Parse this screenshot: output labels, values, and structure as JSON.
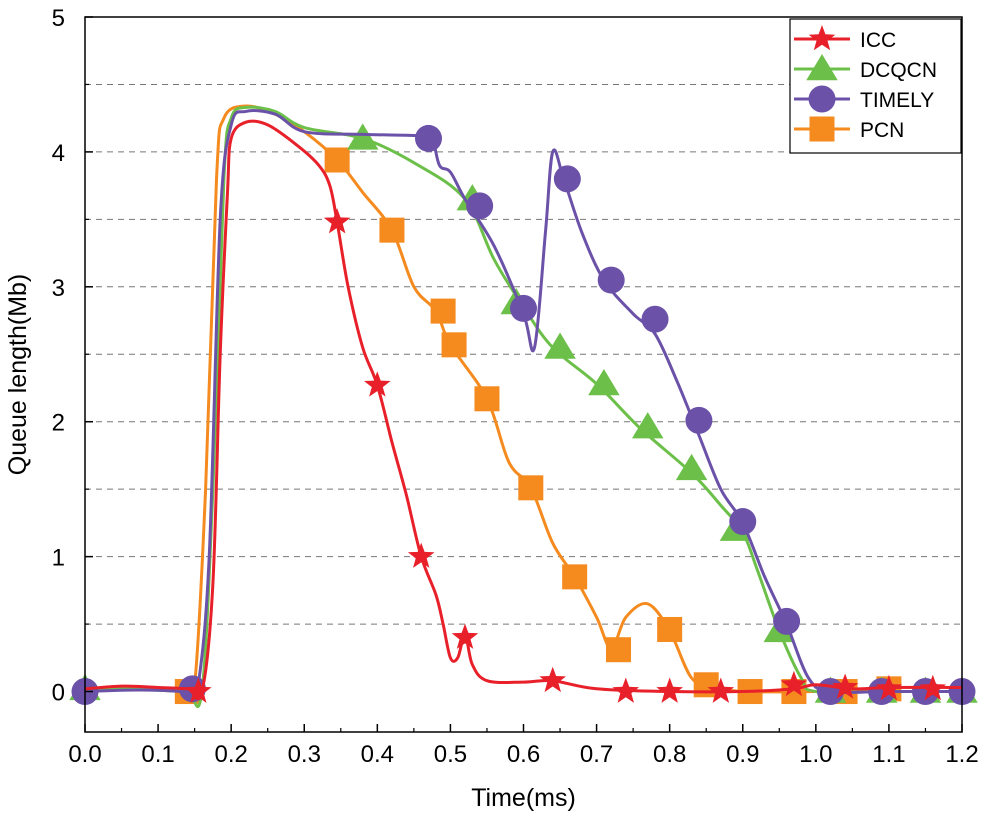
{
  "chart_data": {
    "type": "line",
    "title": "",
    "xlabel": "Time(ms)",
    "ylabel": "Queue length(Mb)",
    "xlim": [
      0.0,
      1.2
    ],
    "ylim": [
      -0.3,
      5.0
    ],
    "x_ticks": [
      "0.0",
      "0.1",
      "0.2",
      "0.3",
      "0.4",
      "0.5",
      "0.6",
      "0.7",
      "0.8",
      "0.9",
      "1.0",
      "1.1",
      "1.2"
    ],
    "y_ticks": [
      "0",
      "1",
      "2",
      "3",
      "4",
      "5"
    ],
    "grid": "horizontal-dashed",
    "legend_position": "top-right",
    "series": [
      {
        "name": "ICC",
        "color": "#e8202a",
        "marker": "star",
        "points": [
          [
            0,
            0.02
          ],
          [
            0.05,
            0.04
          ],
          [
            0.1,
            0.03
          ],
          [
            0.14,
            0.02
          ],
          [
            0.16,
            0
          ],
          [
            0.175,
            0.8
          ],
          [
            0.185,
            2.5
          ],
          [
            0.195,
            3.7
          ],
          [
            0.2,
            4.1
          ],
          [
            0.22,
            4.22
          ],
          [
            0.25,
            4.2
          ],
          [
            0.29,
            4.05
          ],
          [
            0.32,
            3.9
          ],
          [
            0.335,
            3.75
          ],
          [
            0.345,
            3.48
          ],
          [
            0.36,
            3.0
          ],
          [
            0.38,
            2.55
          ],
          [
            0.4,
            2.27
          ],
          [
            0.42,
            1.85
          ],
          [
            0.44,
            1.45
          ],
          [
            0.46,
            1.0
          ],
          [
            0.48,
            0.72
          ],
          [
            0.49,
            0.5
          ],
          [
            0.5,
            0.25
          ],
          [
            0.51,
            0.25
          ],
          [
            0.52,
            0.42
          ],
          [
            0.53,
            0.2
          ],
          [
            0.55,
            0.08
          ],
          [
            0.6,
            0.07
          ],
          [
            0.64,
            0.08
          ],
          [
            0.7,
            0.02
          ],
          [
            0.8,
            0.0
          ],
          [
            0.9,
            0.0
          ],
          [
            0.97,
            0.02
          ],
          [
            1.0,
            0.05
          ],
          [
            1.05,
            0.02
          ],
          [
            1.1,
            0.03
          ],
          [
            1.2,
            0.03
          ]
        ],
        "markers": [
          [
            0.155,
            0.0
          ],
          [
            0.345,
            3.48
          ],
          [
            0.4,
            2.27
          ],
          [
            0.46,
            1.0
          ],
          [
            0.52,
            0.4
          ],
          [
            0.64,
            0.08
          ],
          [
            0.74,
            0.0
          ],
          [
            0.8,
            0.0
          ],
          [
            0.87,
            0.0
          ],
          [
            0.97,
            0.05
          ],
          [
            1.04,
            0.03
          ],
          [
            1.1,
            0.02
          ],
          [
            1.16,
            0.02
          ]
        ]
      },
      {
        "name": "DCQCN",
        "color": "#6cc04a",
        "marker": "triangle",
        "points": [
          [
            0,
            0.02
          ],
          [
            0.05,
            0.02
          ],
          [
            0.1,
            0.01
          ],
          [
            0.14,
            0.0
          ],
          [
            0.16,
            0
          ],
          [
            0.175,
            1.5
          ],
          [
            0.19,
            3.8
          ],
          [
            0.2,
            4.25
          ],
          [
            0.22,
            4.33
          ],
          [
            0.26,
            4.3
          ],
          [
            0.3,
            4.18
          ],
          [
            0.38,
            4.1
          ],
          [
            0.45,
            3.92
          ],
          [
            0.52,
            3.65
          ],
          [
            0.56,
            3.2
          ],
          [
            0.6,
            2.85
          ],
          [
            0.64,
            2.55
          ],
          [
            0.7,
            2.28
          ],
          [
            0.76,
            1.95
          ],
          [
            0.83,
            1.62
          ],
          [
            0.87,
            1.38
          ],
          [
            0.9,
            1.18
          ],
          [
            0.92,
            0.9
          ],
          [
            0.95,
            0.45
          ],
          [
            0.98,
            0.1
          ],
          [
            1.0,
            0.0
          ],
          [
            1.1,
            0.0
          ],
          [
            1.2,
            0.0
          ]
        ],
        "markers": [
          [
            0.0,
            0.02
          ],
          [
            0.38,
            4.1
          ],
          [
            0.53,
            3.65
          ],
          [
            0.59,
            2.88
          ],
          [
            0.65,
            2.55
          ],
          [
            0.71,
            2.28
          ],
          [
            0.77,
            1.96
          ],
          [
            0.83,
            1.65
          ],
          [
            0.89,
            1.2
          ],
          [
            0.95,
            0.45
          ],
          [
            1.02,
            0.0
          ],
          [
            1.09,
            0.0
          ],
          [
            1.15,
            0.0
          ],
          [
            1.2,
            0.0
          ]
        ]
      },
      {
        "name": "TIMELY",
        "color": "#6b52a8",
        "marker": "circle",
        "points": [
          [
            0,
            0.0
          ],
          [
            0.05,
            0.01
          ],
          [
            0.1,
            0.01
          ],
          [
            0.145,
            0.0
          ],
          [
            0.155,
            0.05
          ],
          [
            0.17,
            1.0
          ],
          [
            0.185,
            3.5
          ],
          [
            0.2,
            4.2
          ],
          [
            0.22,
            4.3
          ],
          [
            0.26,
            4.28
          ],
          [
            0.3,
            4.15
          ],
          [
            0.38,
            4.13
          ],
          [
            0.46,
            4.12
          ],
          [
            0.475,
            4.1
          ],
          [
            0.485,
            3.9
          ],
          [
            0.5,
            3.85
          ],
          [
            0.52,
            3.65
          ],
          [
            0.56,
            3.3
          ],
          [
            0.6,
            2.8
          ],
          [
            0.615,
            2.55
          ],
          [
            0.63,
            3.4
          ],
          [
            0.64,
            4.0
          ],
          [
            0.655,
            3.8
          ],
          [
            0.68,
            3.4
          ],
          [
            0.71,
            3.05
          ],
          [
            0.75,
            2.8
          ],
          [
            0.78,
            2.65
          ],
          [
            0.81,
            2.3
          ],
          [
            0.84,
            1.9
          ],
          [
            0.87,
            1.5
          ],
          [
            0.9,
            1.25
          ],
          [
            0.93,
            0.85
          ],
          [
            0.96,
            0.5
          ],
          [
            0.99,
            0.1
          ],
          [
            1.02,
            0.0
          ],
          [
            1.1,
            0.0
          ],
          [
            1.2,
            0.0
          ]
        ],
        "markers": [
          [
            0.0,
            0.0
          ],
          [
            0.147,
            0.02
          ],
          [
            0.47,
            4.1
          ],
          [
            0.54,
            3.6
          ],
          [
            0.6,
            2.84
          ],
          [
            0.66,
            3.8
          ],
          [
            0.72,
            3.05
          ],
          [
            0.78,
            2.76
          ],
          [
            0.84,
            2.01
          ],
          [
            0.9,
            1.26
          ],
          [
            0.96,
            0.52
          ],
          [
            1.02,
            0.0
          ],
          [
            1.09,
            0.0
          ],
          [
            1.15,
            0.0
          ],
          [
            1.2,
            0.0
          ]
        ]
      },
      {
        "name": "PCN",
        "color": "#f58a1f",
        "marker": "square",
        "points": [
          [
            0,
            0.02
          ],
          [
            0.05,
            0.02
          ],
          [
            0.1,
            0.02
          ],
          [
            0.135,
            0.0
          ],
          [
            0.15,
            0.05
          ],
          [
            0.165,
            1.5
          ],
          [
            0.18,
            3.8
          ],
          [
            0.19,
            4.25
          ],
          [
            0.22,
            4.34
          ],
          [
            0.26,
            4.28
          ],
          [
            0.3,
            4.15
          ],
          [
            0.345,
            3.94
          ],
          [
            0.38,
            3.7
          ],
          [
            0.42,
            3.42
          ],
          [
            0.45,
            3.0
          ],
          [
            0.48,
            2.82
          ],
          [
            0.5,
            2.57
          ],
          [
            0.55,
            2.17
          ],
          [
            0.58,
            1.7
          ],
          [
            0.61,
            1.51
          ],
          [
            0.64,
            1.1
          ],
          [
            0.67,
            0.85
          ],
          [
            0.7,
            0.55
          ],
          [
            0.72,
            0.32
          ],
          [
            0.74,
            0.55
          ],
          [
            0.77,
            0.65
          ],
          [
            0.8,
            0.45
          ],
          [
            0.83,
            0.1
          ],
          [
            0.86,
            0.04
          ],
          [
            0.9,
            0.0
          ],
          [
            1.0,
            0.0
          ],
          [
            1.1,
            0.0
          ],
          [
            1.2,
            0.0
          ]
        ],
        "markers": [
          [
            0.14,
            0.0
          ],
          [
            0.345,
            3.94
          ],
          [
            0.42,
            3.42
          ],
          [
            0.49,
            2.82
          ],
          [
            0.505,
            2.57
          ],
          [
            0.55,
            2.17
          ],
          [
            0.61,
            1.51
          ],
          [
            0.67,
            0.85
          ],
          [
            0.73,
            0.31
          ],
          [
            0.8,
            0.46
          ],
          [
            0.85,
            0.05
          ],
          [
            0.91,
            0.0
          ],
          [
            0.97,
            0.0
          ],
          [
            1.04,
            0.0
          ],
          [
            1.1,
            0.02
          ]
        ]
      }
    ]
  }
}
